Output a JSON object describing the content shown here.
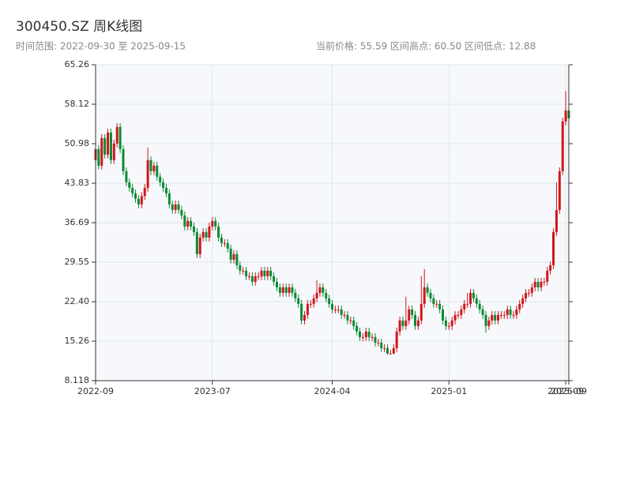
{
  "chart_data": {
    "type": "candlestick",
    "title": "300450.SZ 周K线图",
    "subtitle": "时间范围: 2022-09-30 至 2025-09-15",
    "annotations": [
      "当前价格: 55.59",
      "区间高点: 60.50",
      "区间低点: 12.88"
    ],
    "up_color": "#d0161b",
    "down_color": "#0b8a35",
    "ylim": [
      8.118,
      65.26
    ],
    "yticks": [
      8.118,
      15.26,
      {
        "value": 22.4,
        "label": "22.40"
      },
      29.55,
      36.69,
      43.83,
      50.98,
      58.12,
      65.26
    ],
    "xlim": [
      0,
      154
    ],
    "xticks": [
      {
        "value": 0,
        "label": "2022-09"
      },
      {
        "value": 38,
        "label": "2023-07"
      },
      {
        "value": 77,
        "label": "2024-04"
      },
      {
        "value": 115,
        "label": "2025-01"
      },
      {
        "value": 153,
        "label": "2025-09"
      },
      {
        "value": 154,
        "label": "2025-09"
      }
    ],
    "grid": true,
    "open": [
      48,
      50,
      47,
      52,
      49,
      53,
      48,
      51,
      54,
      50,
      46,
      44,
      43,
      42,
      41,
      40,
      41.5,
      43,
      48,
      46,
      47,
      45,
      44,
      43,
      42,
      40,
      39,
      40,
      39,
      38,
      36,
      37,
      36,
      35,
      31,
      34,
      35,
      34,
      36,
      37,
      36,
      34,
      33,
      33,
      32,
      30,
      31,
      29,
      28,
      28,
      27,
      27,
      26,
      27,
      27,
      28,
      27,
      28,
      27,
      26,
      25,
      24,
      25,
      24,
      25,
      24,
      23,
      22,
      19,
      20,
      22,
      22,
      23,
      24,
      25,
      24,
      23,
      22,
      21,
      21,
      21,
      20,
      20,
      19,
      19,
      18,
      17,
      16,
      16,
      17,
      16,
      16,
      15,
      15,
      14,
      14,
      13,
      13,
      14,
      17,
      19,
      18,
      19,
      21,
      20,
      18,
      19,
      22,
      25,
      24,
      23,
      22,
      22,
      21,
      19,
      18,
      18,
      19,
      20,
      20,
      21,
      22,
      22,
      24,
      23,
      22,
      21,
      20,
      18,
      19,
      20,
      19,
      20,
      20,
      20,
      21,
      20,
      20,
      21,
      22,
      23,
      24,
      24,
      25,
      26,
      25,
      26,
      26,
      28,
      29,
      35,
      39,
      46,
      55,
      57
    ],
    "high": [
      50.7,
      50.7,
      52.7,
      52.7,
      53.7,
      53.7,
      51.7,
      54.7,
      54.7,
      50.7,
      46.7,
      44.7,
      43.7,
      42.7,
      41.7,
      42.2,
      43.7,
      50.3,
      48.7,
      47.7,
      47.7,
      45.7,
      44.7,
      43.7,
      42.7,
      40.7,
      40.7,
      40.7,
      39.7,
      38.7,
      37.7,
      37.7,
      36.7,
      35.7,
      34.7,
      35.7,
      35.7,
      36.7,
      37.7,
      37.7,
      36.7,
      34.7,
      33.7,
      33.7,
      32.7,
      31.7,
      31.7,
      29.7,
      28.7,
      28.7,
      27.7,
      27.7,
      27.7,
      27.7,
      28.7,
      28.7,
      28.7,
      28.7,
      27.7,
      26.7,
      25.7,
      25.7,
      25.7,
      25.7,
      25.7,
      24.7,
      23.7,
      22.7,
      20.7,
      22.7,
      22.7,
      23.7,
      26.3,
      25.7,
      25.7,
      24.7,
      23.7,
      22.7,
      21.7,
      21.7,
      21.7,
      20.7,
      20.7,
      19.7,
      19.7,
      18.7,
      17.7,
      16.7,
      17.7,
      17.7,
      16.7,
      16.7,
      15.7,
      15.7,
      14.7,
      14.7,
      13.7,
      14.7,
      17.7,
      19.7,
      19.7,
      23.3,
      21.7,
      21.7,
      20.7,
      19.7,
      27,
      28.3,
      25.7,
      24.7,
      23.7,
      22.7,
      22.7,
      21.7,
      19.7,
      18.7,
      19.7,
      20.7,
      20.7,
      21.7,
      22.7,
      24,
      24.7,
      24.7,
      23.7,
      22.7,
      21.7,
      20.7,
      19.7,
      20.7,
      20.7,
      20.7,
      20.7,
      20.7,
      21.7,
      21.7,
      20.7,
      21.7,
      22.7,
      23.7,
      24.7,
      24.7,
      25.7,
      26.7,
      26.7,
      26.7,
      26.7,
      28.7,
      29.7,
      35.7,
      44,
      46.7,
      55.7,
      60.5,
      57.7
    ],
    "low": [
      47.3,
      46.3,
      46.3,
      48.3,
      48.3,
      47.3,
      47.3,
      50.3,
      49.3,
      45.3,
      43.3,
      42.3,
      41.3,
      40.3,
      39.3,
      39.3,
      40.8,
      42.3,
      45.3,
      45.3,
      44.3,
      43.3,
      42.3,
      41.3,
      39.3,
      38.3,
      38.3,
      38.3,
      37.3,
      35.3,
      35.3,
      35.3,
      34.3,
      30.3,
      30.3,
      33.3,
      33.3,
      33.3,
      35.3,
      35.3,
      33.3,
      32.3,
      32.3,
      31.3,
      29.3,
      29.3,
      28.3,
      27.3,
      27.3,
      26.3,
      26.3,
      25.3,
      25.3,
      26.3,
      26.3,
      26.3,
      26.3,
      26.3,
      25.3,
      24.3,
      23.3,
      23.3,
      23.3,
      23.3,
      23.3,
      22.3,
      21.3,
      18.3,
      18.3,
      19.3,
      21.3,
      21.3,
      22.3,
      23.3,
      23.3,
      22.3,
      21.3,
      20.3,
      20.3,
      20.3,
      19.3,
      19.3,
      18.3,
      18.3,
      17.3,
      16.3,
      15.3,
      15.3,
      15.3,
      15.3,
      15.3,
      14.3,
      14.3,
      13.3,
      13.3,
      12.88,
      12.9,
      12.9,
      13.3,
      16.3,
      17.3,
      17.3,
      18.3,
      19.3,
      17.3,
      17.3,
      18.3,
      21.3,
      23.3,
      22.3,
      21.3,
      21.3,
      20.3,
      18.3,
      17.3,
      17.3,
      17.3,
      18.3,
      19.3,
      19.3,
      20.3,
      21.3,
      21.3,
      22.3,
      21.3,
      20.3,
      19.3,
      16.8,
      17.3,
      18.3,
      18.3,
      18.3,
      19.3,
      19.3,
      19.3,
      19.3,
      19.3,
      19.3,
      20.3,
      21.3,
      22.3,
      23.3,
      23.3,
      24.3,
      24.3,
      24.3,
      25.3,
      25.3,
      27.3,
      28.3,
      34.3,
      38.3,
      45.3,
      54.3,
      54.8
    ],
    "close": [
      50,
      47,
      52,
      49,
      53,
      48,
      51,
      54,
      50,
      46,
      44,
      43,
      42,
      41,
      40,
      41.5,
      43,
      48,
      46,
      47,
      45,
      44,
      43,
      42,
      40,
      39,
      40,
      39,
      38,
      36,
      37,
      36,
      35,
      31,
      34,
      35,
      34,
      36,
      37,
      36,
      34,
      33,
      33,
      32,
      30,
      31,
      29,
      28,
      28,
      27,
      27,
      26,
      27,
      27,
      28,
      27,
      28,
      27,
      26,
      25,
      24,
      25,
      24,
      25,
      24,
      23,
      22,
      19,
      20,
      22,
      22,
      23,
      24,
      25,
      24,
      23,
      22,
      21,
      21,
      21,
      20,
      20,
      19,
      19,
      18,
      17,
      16,
      16,
      17,
      16,
      16,
      15,
      15,
      14,
      14,
      13,
      13,
      14,
      17,
      19,
      18,
      19,
      21,
      20,
      18,
      19,
      22,
      25,
      24,
      23,
      22,
      22,
      21,
      19,
      18,
      18,
      19,
      20,
      20,
      21,
      22,
      22,
      24,
      23,
      22,
      21,
      20,
      18,
      19,
      20,
      19,
      20,
      20,
      20,
      21,
      20,
      20,
      21,
      22,
      23,
      24,
      24,
      25,
      26,
      25,
      26,
      26,
      28,
      29,
      35,
      39,
      46,
      55,
      57,
      55.59
    ]
  }
}
